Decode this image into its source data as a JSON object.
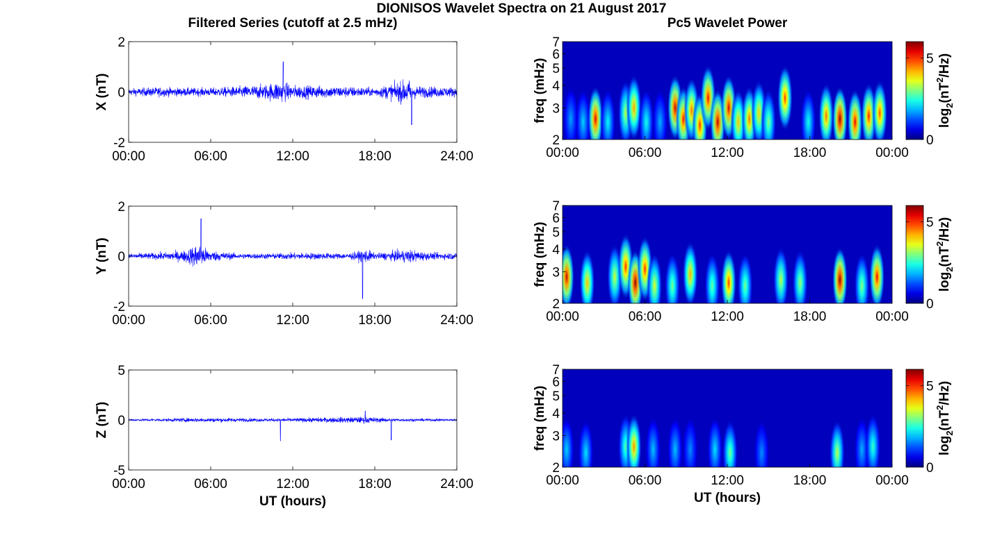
{
  "figure": {
    "title": "DIONISOS Wavelet Spectra on 21 August 2017",
    "left_column_title": "Filtered Series (cutoff at 2.5 mHz)",
    "right_column_title": "Pc5 Wavelet Power"
  },
  "chart_data": [
    {
      "type": "line",
      "panel": "X time series",
      "ylabel": "X (nT)",
      "xlabel": "",
      "xlim_hours": [
        0,
        24
      ],
      "x_ticks": [
        "00:00",
        "06:00",
        "12:00",
        "18:00",
        "24:00"
      ],
      "ylim": [
        -2,
        2
      ],
      "y_ticks": [
        "-2",
        "0",
        "2"
      ],
      "series": [
        {
          "color": "#0000ff",
          "x_hours": [
            0,
            2,
            4,
            6,
            8,
            10,
            11,
            12,
            14,
            16,
            18,
            20.5,
            21,
            22,
            24
          ],
          "envelope_nT": [
            0.25,
            0.35,
            0.3,
            0.3,
            0.4,
            0.55,
            0.8,
            0.5,
            0.45,
            0.4,
            0.3,
            0.9,
            0.45,
            0.4,
            0.35
          ],
          "min_nT": -1.3,
          "min_at_hour": 20.7,
          "max_nT": 1.2,
          "max_at_hour": 11.3
        }
      ]
    },
    {
      "type": "line",
      "panel": "Y time series",
      "ylabel": "Y (nT)",
      "xlabel": "",
      "xlim_hours": [
        0,
        24
      ],
      "x_ticks": [
        "00:00",
        "06:00",
        "12:00",
        "18:00",
        "24:00"
      ],
      "ylim": [
        -2,
        2
      ],
      "y_ticks": [
        "-2",
        "0",
        "2"
      ],
      "series": [
        {
          "color": "#0000ff",
          "x_hours": [
            0,
            2,
            4,
            5,
            6,
            8,
            10,
            12,
            14,
            16,
            17,
            17.5,
            18,
            20.5,
            22,
            24
          ],
          "envelope_nT": [
            0.2,
            0.25,
            0.4,
            0.9,
            0.4,
            0.2,
            0.2,
            0.25,
            0.25,
            0.2,
            0.4,
            0.5,
            0.2,
            0.5,
            0.25,
            0.25
          ],
          "min_nT": -1.7,
          "min_at_hour": 17.1,
          "max_nT": 1.5,
          "max_at_hour": 5.3
        }
      ]
    },
    {
      "type": "line",
      "panel": "Z time series",
      "ylabel": "Z (nT)",
      "xlabel": "UT (hours)",
      "xlim_hours": [
        0,
        24
      ],
      "x_ticks": [
        "00:00",
        "06:00",
        "12:00",
        "18:00",
        "24:00"
      ],
      "ylim": [
        -5,
        5
      ],
      "y_ticks": [
        "-5",
        "0",
        "5"
      ],
      "series": [
        {
          "color": "#0000ff",
          "x_hours": [
            0,
            5.3,
            11,
            17.4,
            19.2,
            24
          ],
          "envelope_nT": [
            0.2,
            0.4,
            0.3,
            0.6,
            0.3,
            0.2
          ],
          "spikes": [
            {
              "hour": 11.1,
              "value_nT": -2.1
            },
            {
              "hour": 19.2,
              "value_nT": -2.0
            },
            {
              "hour": 17.3,
              "value_nT": 0.9
            }
          ]
        }
      ]
    },
    {
      "type": "heatmap",
      "panel": "X wavelet power",
      "ylabel": "freq (mHz)",
      "xlabel": "",
      "x_ticks": [
        "00:00",
        "06:00",
        "12:00",
        "18:00",
        "00:00"
      ],
      "xlim_hours": [
        0,
        24
      ],
      "ylim_mHz": [
        2,
        7
      ],
      "y_scale": "log",
      "y_ticks": [
        "2",
        "3",
        "4",
        "5",
        "6",
        "7"
      ],
      "colormap": "jet",
      "colorbar_label": "log2(nT^2/Hz)",
      "colorbar_range": [
        0,
        6
      ],
      "colorbar_ticks": [
        "0",
        "5"
      ],
      "blobs": [
        {
          "hour": 0.6,
          "freq_mHz": 2.6,
          "level": 1.7
        },
        {
          "hour": 1.5,
          "freq_mHz": 2.5,
          "level": 2.0
        },
        {
          "hour": 2.4,
          "freq_mHz": 2.6,
          "level": 5.5
        },
        {
          "hour": 3.3,
          "freq_mHz": 2.5,
          "level": 2.3
        },
        {
          "hour": 4.6,
          "freq_mHz": 2.8,
          "level": 3.4
        },
        {
          "hour": 5.2,
          "freq_mHz": 3.0,
          "level": 4.3
        },
        {
          "hour": 6.1,
          "freq_mHz": 2.5,
          "level": 2.4
        },
        {
          "hour": 7.1,
          "freq_mHz": 2.5,
          "level": 1.8
        },
        {
          "hour": 8.2,
          "freq_mHz": 3.0,
          "level": 5.6
        },
        {
          "hour": 8.8,
          "freq_mHz": 2.6,
          "level": 5.2
        },
        {
          "hour": 9.4,
          "freq_mHz": 2.9,
          "level": 4.6
        },
        {
          "hour": 10.0,
          "freq_mHz": 2.4,
          "level": 5.0
        },
        {
          "hour": 10.6,
          "freq_mHz": 3.4,
          "level": 5.3
        },
        {
          "hour": 11.3,
          "freq_mHz": 2.5,
          "level": 5.7
        },
        {
          "hour": 12.1,
          "freq_mHz": 3.0,
          "level": 5.5
        },
        {
          "hour": 12.8,
          "freq_mHz": 2.5,
          "level": 4.1
        },
        {
          "hour": 13.6,
          "freq_mHz": 2.6,
          "level": 4.6
        },
        {
          "hour": 14.3,
          "freq_mHz": 2.8,
          "level": 4.0
        },
        {
          "hour": 15.0,
          "freq_mHz": 2.5,
          "level": 3.1
        },
        {
          "hour": 16.2,
          "freq_mHz": 3.4,
          "level": 4.9
        },
        {
          "hour": 17.9,
          "freq_mHz": 2.5,
          "level": 2.4
        },
        {
          "hour": 19.2,
          "freq_mHz": 2.7,
          "level": 4.6
        },
        {
          "hour": 20.2,
          "freq_mHz": 2.6,
          "level": 5.9
        },
        {
          "hour": 21.3,
          "freq_mHz": 2.5,
          "level": 5.4
        },
        {
          "hour": 22.3,
          "freq_mHz": 2.7,
          "level": 5.1
        },
        {
          "hour": 23.1,
          "freq_mHz": 2.8,
          "level": 4.8
        }
      ]
    },
    {
      "type": "heatmap",
      "panel": "Y wavelet power",
      "ylabel": "freq (mHz)",
      "xlabel": "",
      "x_ticks": [
        "00:00",
        "06:00",
        "12:00",
        "18:00",
        "00:00"
      ],
      "xlim_hours": [
        0,
        24
      ],
      "ylim_mHz": [
        2,
        7
      ],
      "y_scale": "log",
      "y_ticks": [
        "2",
        "3",
        "4",
        "5",
        "6",
        "7"
      ],
      "colormap": "jet",
      "colorbar_label": "log2(nT^2/Hz)",
      "colorbar_range": [
        0,
        6
      ],
      "colorbar_ticks": [
        "0",
        "5"
      ],
      "blobs": [
        {
          "hour": 0.3,
          "freq_mHz": 2.8,
          "level": 5.6
        },
        {
          "hour": 1.8,
          "freq_mHz": 2.6,
          "level": 4.1
        },
        {
          "hour": 3.8,
          "freq_mHz": 2.8,
          "level": 3.5
        },
        {
          "hour": 4.6,
          "freq_mHz": 3.2,
          "level": 5.0
        },
        {
          "hour": 5.3,
          "freq_mHz": 2.6,
          "level": 5.9
        },
        {
          "hour": 6.0,
          "freq_mHz": 3.1,
          "level": 5.0
        },
        {
          "hour": 6.7,
          "freq_mHz": 2.5,
          "level": 3.6
        },
        {
          "hour": 8.0,
          "freq_mHz": 2.5,
          "level": 3.0
        },
        {
          "hour": 9.3,
          "freq_mHz": 2.9,
          "level": 4.2
        },
        {
          "hour": 10.9,
          "freq_mHz": 2.5,
          "level": 2.9
        },
        {
          "hour": 12.1,
          "freq_mHz": 2.6,
          "level": 4.9
        },
        {
          "hour": 13.3,
          "freq_mHz": 2.5,
          "level": 3.0
        },
        {
          "hour": 15.9,
          "freq_mHz": 2.7,
          "level": 3.4
        },
        {
          "hour": 17.3,
          "freq_mHz": 2.6,
          "level": 3.2
        },
        {
          "hour": 20.2,
          "freq_mHz": 2.7,
          "level": 5.9
        },
        {
          "hour": 21.8,
          "freq_mHz": 2.5,
          "level": 3.1
        },
        {
          "hour": 22.9,
          "freq_mHz": 2.8,
          "level": 5.3
        }
      ]
    },
    {
      "type": "heatmap",
      "panel": "Z wavelet power",
      "ylabel": "freq (mHz)",
      "xlabel": "UT (hours)",
      "x_ticks": [
        "00:00",
        "06:00",
        "12:00",
        "18:00",
        "00:00"
      ],
      "xlim_hours": [
        0,
        24
      ],
      "ylim_mHz": [
        2,
        7
      ],
      "y_scale": "log",
      "y_ticks": [
        "2",
        "3",
        "4",
        "5",
        "6",
        "7"
      ],
      "colormap": "jet",
      "colorbar_label": "log2(nT^2/Hz)",
      "colorbar_range": [
        0,
        6
      ],
      "colorbar_ticks": [
        "0",
        "5"
      ],
      "blobs": [
        {
          "hour": 0.3,
          "freq_mHz": 2.5,
          "level": 2.0
        },
        {
          "hour": 1.7,
          "freq_mHz": 2.4,
          "level": 2.1
        },
        {
          "hour": 4.6,
          "freq_mHz": 2.6,
          "level": 2.8
        },
        {
          "hour": 5.2,
          "freq_mHz": 2.6,
          "level": 4.4
        },
        {
          "hour": 6.6,
          "freq_mHz": 2.5,
          "level": 1.9
        },
        {
          "hour": 8.2,
          "freq_mHz": 2.5,
          "level": 1.9
        },
        {
          "hour": 9.3,
          "freq_mHz": 2.5,
          "level": 1.6
        },
        {
          "hour": 11.1,
          "freq_mHz": 2.5,
          "level": 2.1
        },
        {
          "hour": 12.2,
          "freq_mHz": 2.4,
          "level": 3.0
        },
        {
          "hour": 14.5,
          "freq_mHz": 2.4,
          "level": 1.6
        },
        {
          "hour": 20.0,
          "freq_mHz": 2.4,
          "level": 3.4
        },
        {
          "hour": 21.8,
          "freq_mHz": 2.5,
          "level": 1.8
        },
        {
          "hour": 22.6,
          "freq_mHz": 2.6,
          "level": 2.6
        }
      ]
    }
  ]
}
